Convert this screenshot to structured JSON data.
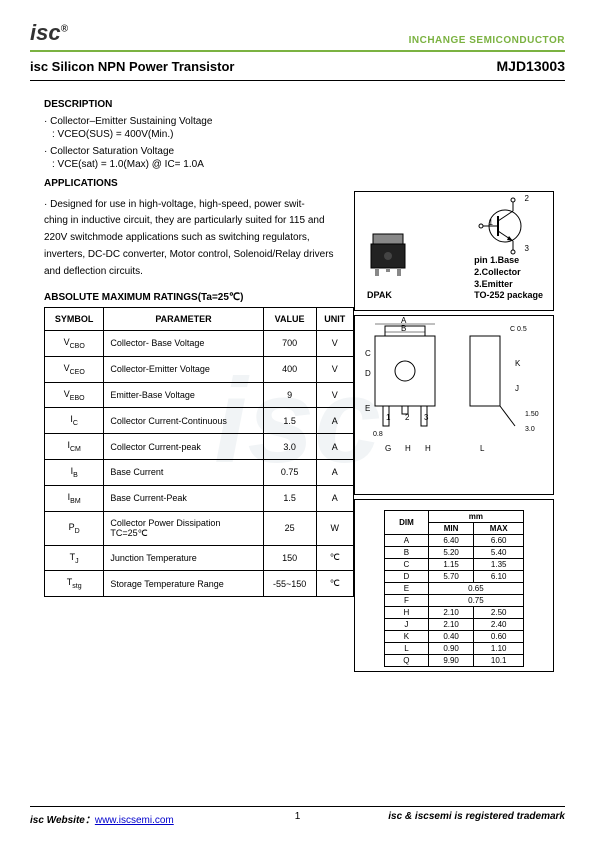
{
  "header": {
    "logo": "isc",
    "logo_reg": "®",
    "brand": "INCHANGE SEMICONDUCTOR"
  },
  "title": {
    "left": "isc Silicon NPN Power Transistor",
    "right": "MJD13003"
  },
  "sections": {
    "description": "DESCRIPTION",
    "applications": "APPLICATIONS",
    "ratings": "ABSOLUTE MAXIMUM RATINGS(Ta=25℃)"
  },
  "desc_items": [
    {
      "bullet": "· Collector–Emitter Sustaining Voltage",
      "sub": ": VCEO(SUS) = 400V(Min.)"
    },
    {
      "bullet": "· Collector Saturation Voltage",
      "sub": ": VCE(sat) = 1.0(Max) @ IC= 1.0A"
    }
  ],
  "app_bullet": "· Designed for use in high-voltage, high-speed, power swit-",
  "app_text": "ching in inductive circuit, they are particularly suited for 115 and 220V switchmode applications such as switching regulators, inverters, DC-DC converter, Motor control, Solenoid/Relay drivers and deflection circuits.",
  "ratings_table": {
    "headers": [
      "SYMBOL",
      "PARAMETER",
      "VALUE",
      "UNIT"
    ],
    "rows": [
      {
        "sym": "V",
        "sub": "CBO",
        "param": "Collector- Base Voltage",
        "value": "700",
        "unit": "V"
      },
      {
        "sym": "V",
        "sub": "CEO",
        "param": "Collector-Emitter Voltage",
        "value": "400",
        "unit": "V"
      },
      {
        "sym": "V",
        "sub": "EBO",
        "param": "Emitter-Base Voltage",
        "value": "9",
        "unit": "V"
      },
      {
        "sym": "I",
        "sub": "C",
        "param": "Collector Current-Continuous",
        "value": "1.5",
        "unit": "A"
      },
      {
        "sym": "I",
        "sub": "CM",
        "param": "Collector Current-peak",
        "value": "3.0",
        "unit": "A"
      },
      {
        "sym": "I",
        "sub": "B",
        "param": "Base Current",
        "value": "0.75",
        "unit": "A"
      },
      {
        "sym": "I",
        "sub": "BM",
        "param": "Base Current-Peak",
        "value": "1.5",
        "unit": "A"
      },
      {
        "sym": "P",
        "sub": "D",
        "param": "Collector Power Dissipation\nTC=25℃",
        "value": "25",
        "unit": "W"
      },
      {
        "sym": "T",
        "sub": "J",
        "param": "Junction Temperature",
        "value": "150",
        "unit": "℃"
      },
      {
        "sym": "T",
        "sub": "stg",
        "param": "Storage Temperature Range",
        "value": "-55~150",
        "unit": "℃"
      }
    ]
  },
  "package": {
    "dpak": "DPAK",
    "pins": "pin 1.Base\n2.Collector\n3.Emitter",
    "pkg_type": "TO-252 package",
    "sch_labels": {
      "c": "2",
      "b": "1",
      "e": "3"
    }
  },
  "mech": {
    "arrows": [
      "A",
      "B",
      "C",
      "D",
      "E",
      "F",
      "G",
      "H",
      "J",
      "K",
      "L"
    ],
    "c05": "C 0.5",
    "nums": [
      "1",
      "2",
      "3"
    ],
    "vals": [
      "0.8",
      "1.50",
      "3.0"
    ]
  },
  "dim_table": {
    "header_top": "mm",
    "headers": [
      "DIM",
      "MIN",
      "MAX"
    ],
    "rows": [
      [
        "A",
        "6.40",
        "6.60"
      ],
      [
        "B",
        "5.20",
        "5.40"
      ],
      [
        "C",
        "1.15",
        "1.35"
      ],
      [
        "D",
        "5.70",
        "6.10"
      ],
      [
        "E",
        "0.65",
        ""
      ],
      [
        "F",
        "0.75",
        ""
      ],
      [
        "H",
        "2.10",
        "2.50"
      ],
      [
        "J",
        "2.10",
        "2.40"
      ],
      [
        "K",
        "0.40",
        "0.60"
      ],
      [
        "L",
        "0.90",
        "1.10"
      ],
      [
        "Q",
        "9.90",
        "10.1"
      ]
    ]
  },
  "footer": {
    "left_label": "isc Website：",
    "url": "www.iscsemi.com",
    "page": "1",
    "right": "isc & iscsemi is registered trademark"
  },
  "watermark": "isc"
}
